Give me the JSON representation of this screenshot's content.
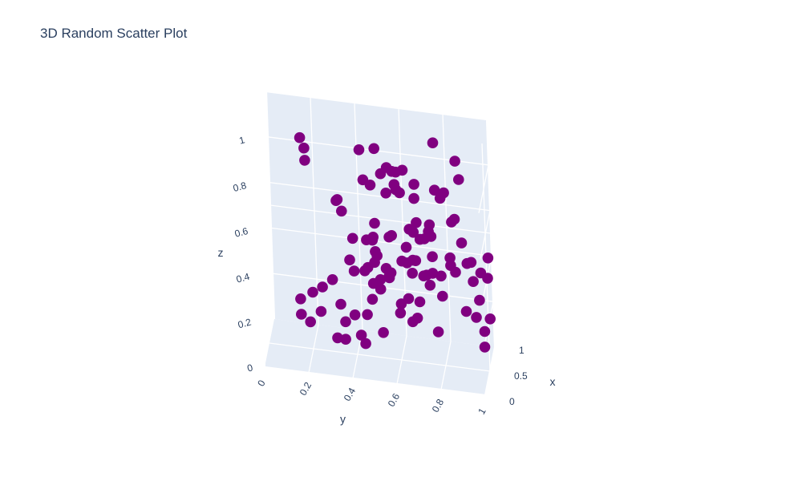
{
  "chart_data": {
    "type": "scatter",
    "title": "3D Random Scatter Plot",
    "xlabel": "x",
    "ylabel": "y",
    "zlabel": "z",
    "x_ticks": [
      "0",
      "0.5",
      "1"
    ],
    "y_ticks": [
      "0",
      "0.2",
      "0.4",
      "0.6",
      "0.8",
      "1"
    ],
    "z_ticks": [
      "0",
      "0.2",
      "0.4",
      "0.6",
      "0.8",
      "1"
    ],
    "xlim": [
      0,
      1
    ],
    "ylim": [
      0,
      1
    ],
    "zlim": [
      0,
      1
    ],
    "grid": true,
    "colors": {
      "marker": "#800080",
      "pane": "#e5ecf6",
      "grid": "#ffffff",
      "text": "#2a3f5f"
    },
    "points": [
      {
        "x": 0.27,
        "y": 0.2,
        "z": 0.93
      },
      {
        "x": 0.44,
        "y": 0.51,
        "z": 0.93
      },
      {
        "x": 0.47,
        "y": 0.44,
        "z": 0.91
      },
      {
        "x": 0.7,
        "y": 0.16,
        "z": 0.88
      },
      {
        "x": 0.3,
        "y": 0.2,
        "z": 0.87
      },
      {
        "x": 0.8,
        "y": 0.76,
        "z": 0.91
      },
      {
        "x": 0.33,
        "y": 0.46,
        "z": 0.81
      },
      {
        "x": 0.39,
        "y": 0.59,
        "z": 0.85
      },
      {
        "x": 0.35,
        "y": 0.64,
        "z": 0.87
      },
      {
        "x": 0.38,
        "y": 0.49,
        "z": 0.78
      },
      {
        "x": 0.58,
        "y": 0.55,
        "z": 0.71
      },
      {
        "x": 0.34,
        "y": 0.61,
        "z": 0.86
      },
      {
        "x": 0.5,
        "y": 0.56,
        "z": 0.84
      },
      {
        "x": 0.36,
        "y": 0.54,
        "z": 0.84
      },
      {
        "x": 0.36,
        "y": 0.6,
        "z": 0.8
      },
      {
        "x": 0.62,
        "y": 0.61,
        "z": 0.71
      },
      {
        "x": 0.64,
        "y": 0.81,
        "z": 0.73
      },
      {
        "x": 0.76,
        "y": 0.86,
        "z": 0.85
      },
      {
        "x": 0.26,
        "y": 0.9,
        "z": 0.88
      },
      {
        "x": 0.37,
        "y": 0.69,
        "z": 0.81
      },
      {
        "x": 0.14,
        "y": 0.35,
        "z": 0.75
      },
      {
        "x": 0.62,
        "y": 0.32,
        "z": 0.64
      },
      {
        "x": 0.49,
        "y": 0.6,
        "z": 0.75
      },
      {
        "x": 0.13,
        "y": 0.91,
        "z": 0.63
      },
      {
        "x": 0.81,
        "y": 0.76,
        "z": 0.7
      },
      {
        "x": 0.1,
        "y": 0.37,
        "z": 0.71
      },
      {
        "x": 0.26,
        "y": 0.51,
        "z": 0.64
      },
      {
        "x": 0.91,
        "y": 0.66,
        "z": 0.63
      },
      {
        "x": 0.89,
        "y": 0.78,
        "z": 0.65
      },
      {
        "x": 0.22,
        "y": 0.41,
        "z": 0.57
      },
      {
        "x": 0.84,
        "y": 0.67,
        "z": 0.54
      },
      {
        "x": 0.34,
        "y": 0.57,
        "z": 0.57
      },
      {
        "x": 0.27,
        "y": 0.47,
        "z": 0.56
      },
      {
        "x": 0.24,
        "y": 0.51,
        "z": 0.52
      },
      {
        "x": 0.27,
        "y": 0.65,
        "z": 0.55
      },
      {
        "x": 0.73,
        "y": 0.85,
        "z": 0.6
      },
      {
        "x": 0.36,
        "y": 0.68,
        "z": 0.6
      },
      {
        "x": 0.78,
        "y": 0.64,
        "z": 0.52
      },
      {
        "x": 0.85,
        "y": 0.83,
        "z": 0.56
      },
      {
        "x": 0.53,
        "y": 0.72,
        "z": 0.54
      },
      {
        "x": 0.92,
        "y": 0.72,
        "z": 0.49
      },
      {
        "x": 0.42,
        "y": 0.76,
        "z": 0.49
      },
      {
        "x": 0.83,
        "y": 0.73,
        "z": 0.54
      },
      {
        "x": 0.48,
        "y": 0.49,
        "z": 0.53
      },
      {
        "x": 0.56,
        "y": 0.57,
        "z": 0.53
      },
      {
        "x": 0.6,
        "y": 0.48,
        "z": 0.49
      },
      {
        "x": 0.74,
        "y": 0.69,
        "z": 0.49
      },
      {
        "x": 0.55,
        "y": 0.75,
        "z": 0.55
      },
      {
        "x": 0.39,
        "y": 0.51,
        "z": 0.47
      },
      {
        "x": 0.48,
        "y": 0.68,
        "z": 0.45
      },
      {
        "x": 0.28,
        "y": 0.39,
        "z": 0.46
      },
      {
        "x": 0.86,
        "y": 0.99,
        "z": 0.42
      },
      {
        "x": 0.74,
        "y": 0.9,
        "z": 0.41
      },
      {
        "x": 0.62,
        "y": 0.61,
        "z": 0.41
      },
      {
        "x": 0.62,
        "y": 0.66,
        "z": 0.42
      },
      {
        "x": 0.91,
        "y": 0.91,
        "z": 0.38
      },
      {
        "x": 0.84,
        "y": 0.82,
        "z": 0.37
      },
      {
        "x": 0.25,
        "y": 0.41,
        "z": 0.42
      },
      {
        "x": 0.25,
        "y": 0.57,
        "z": 0.41
      },
      {
        "x": 0.31,
        "y": 0.47,
        "z": 0.43
      },
      {
        "x": 0.34,
        "y": 0.5,
        "z": 0.45
      },
      {
        "x": 0.57,
        "y": 0.54,
        "z": 0.38
      },
      {
        "x": 0.67,
        "y": 0.85,
        "z": 0.38
      },
      {
        "x": 0.69,
        "y": 0.63,
        "z": 0.39
      },
      {
        "x": 0.42,
        "y": 0.56,
        "z": 0.38
      },
      {
        "x": 0.42,
        "y": 0.45,
        "z": 0.39
      },
      {
        "x": 0.81,
        "y": 0.82,
        "z": 0.41
      },
      {
        "x": 0.25,
        "y": 0.31,
        "z": 0.37
      },
      {
        "x": 0.12,
        "y": 0.27,
        "z": 0.36
      },
      {
        "x": 0.63,
        "y": 0.72,
        "z": 0.36
      },
      {
        "x": 0.22,
        "y": 0.22,
        "z": 0.31
      },
      {
        "x": 0.56,
        "y": 0.71,
        "z": 0.37
      },
      {
        "x": 0.95,
        "y": 0.95,
        "z": 0.33
      },
      {
        "x": 0.59,
        "y": 0.75,
        "z": 0.38
      },
      {
        "x": 0.41,
        "y": 0.52,
        "z": 0.32
      },
      {
        "x": 0.54,
        "y": 0.66,
        "z": 0.38
      },
      {
        "x": 0.37,
        "y": 0.49,
        "z": 0.35
      },
      {
        "x": 0.1,
        "y": 0.17,
        "z": 0.3
      },
      {
        "x": 0.4,
        "y": 0.57,
        "z": 0.4
      },
      {
        "x": 0.14,
        "y": 0.35,
        "z": 0.29
      },
      {
        "x": 0.23,
        "y": 0.49,
        "z": 0.31
      },
      {
        "x": 0.42,
        "y": 0.52,
        "z": 0.36
      },
      {
        "x": 0.74,
        "y": 0.78,
        "z": 0.34
      },
      {
        "x": 0.77,
        "y": 0.99,
        "z": 0.35
      },
      {
        "x": 0.12,
        "y": 0.37,
        "z": 0.22
      },
      {
        "x": 0.71,
        "y": 0.73,
        "z": 0.3
      },
      {
        "x": 0.44,
        "y": 0.61,
        "z": 0.26
      },
      {
        "x": 0.52,
        "y": 0.64,
        "z": 0.27
      },
      {
        "x": 0.53,
        "y": 0.69,
        "z": 0.26
      },
      {
        "x": 0.85,
        "y": 0.92,
        "z": 0.31
      },
      {
        "x": 0.19,
        "y": 0.41,
        "z": 0.24
      },
      {
        "x": 0.61,
        "y": 0.79,
        "z": 0.28
      },
      {
        "x": 0.76,
        "y": 0.95,
        "z": 0.25
      },
      {
        "x": 0.31,
        "y": 0.25,
        "z": 0.21
      },
      {
        "x": 0.11,
        "y": 0.17,
        "z": 0.23
      },
      {
        "x": 0.53,
        "y": 0.6,
        "z": 0.2
      },
      {
        "x": 0.73,
        "y": 0.89,
        "z": 0.2
      },
      {
        "x": 0.43,
        "y": 0.66,
        "z": 0.19
      },
      {
        "x": 0.32,
        "y": 0.46,
        "z": 0.22
      },
      {
        "x": 0.14,
        "y": 0.33,
        "z": 0.14
      },
      {
        "x": 0.12,
        "y": 0.21,
        "z": 0.2
      },
      {
        "x": 0.74,
        "y": 0.97,
        "z": 0.12
      },
      {
        "x": 0.52,
        "y": 0.77,
        "z": 0.14
      },
      {
        "x": 0.32,
        "y": 0.53,
        "z": 0.15
      },
      {
        "x": 0.3,
        "y": 0.43,
        "z": 0.13
      },
      {
        "x": 0.7,
        "y": 0.97,
        "z": 0.06
      },
      {
        "x": 0.28,
        "y": 0.45,
        "z": 0.1
      },
      {
        "x": 0.47,
        "y": 0.68,
        "z": 0.2
      },
      {
        "x": 0.82,
        "y": 0.93,
        "z": 0.16
      },
      {
        "x": 0.27,
        "y": 0.36,
        "z": 0.11
      },
      {
        "x": 0.87,
        "y": 0.99,
        "z": 0.15
      }
    ]
  }
}
